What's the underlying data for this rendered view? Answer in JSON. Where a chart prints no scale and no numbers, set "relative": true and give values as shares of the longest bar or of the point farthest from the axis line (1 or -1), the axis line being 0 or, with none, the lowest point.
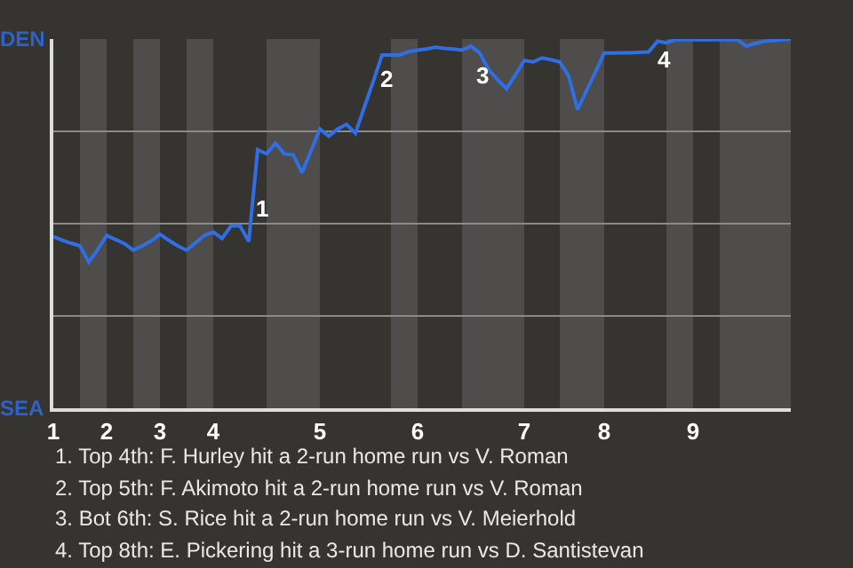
{
  "chart_data": {
    "type": "line",
    "categories": [
      "1",
      null,
      null,
      null,
      null,
      null,
      "2",
      null,
      null,
      null,
      null,
      null,
      "3",
      null,
      null,
      null,
      null,
      null,
      "4",
      null,
      null,
      null,
      null,
      null,
      null,
      null,
      null,
      null,
      null,
      null,
      "5",
      null,
      null,
      null,
      null,
      null,
      null,
      null,
      null,
      null,
      null,
      "6",
      null,
      null,
      null,
      null,
      null,
      null,
      null,
      null,
      null,
      null,
      null,
      "7",
      null,
      null,
      null,
      null,
      null,
      null,
      null,
      null,
      "8",
      null,
      null,
      null,
      null,
      null,
      null,
      null,
      null,
      null,
      "9",
      null,
      null,
      null,
      null,
      null,
      null,
      null,
      null,
      null,
      null,
      null
    ],
    "series": [
      {
        "color": "#2f6ee3",
        "values": [
          0.465,
          0.455,
          0.447,
          0.44,
          0.396,
          0.43,
          0.468,
          0.457,
          0.446,
          0.428,
          0.44,
          0.453,
          0.471,
          0.455,
          0.44,
          0.428,
          0.448,
          0.468,
          0.477,
          0.46,
          0.494,
          0.494,
          0.452,
          0.7,
          0.689,
          0.718,
          0.689,
          0.686,
          0.638,
          0.697,
          0.756,
          0.737,
          0.756,
          0.769,
          0.745,
          0.815,
          0.885,
          0.957,
          0.957,
          0.957,
          0.966,
          0.97,
          0.973,
          0.978,
          0.975,
          0.973,
          0.97,
          0.981,
          0.962,
          0.917,
          0.89,
          0.865,
          0.903,
          0.942,
          0.938,
          0.949,
          0.944,
          0.938,
          0.9,
          0.809,
          0.86,
          0.91,
          0.962,
          0.962,
          0.963,
          0.963,
          0.964,
          0.965,
          0.994,
          0.99,
          0.998,
          0.998,
          0.998,
          0.998,
          0.998,
          0.998,
          0.998,
          0.998,
          0.981,
          0.988,
          0.994,
          0.996,
          0.998,
          1.0
        ]
      }
    ],
    "relative": true,
    "grid": "y",
    "annotations": [
      "DEN",
      "SEA",
      "1",
      "2",
      "3",
      "4",
      "1. Top 4th: F. Hurley hit a 2-run home run vs V. Roman",
      "2. Top 5th: F. Akimoto hit a 2-run home run vs V. Roman",
      "3. Bot 6th: S. Rice hit a 2-run home run vs V. Meierhold",
      "4. Top 8th: E. Pickering hit a 3-run home run vs D. Santistevan"
    ]
  }
}
